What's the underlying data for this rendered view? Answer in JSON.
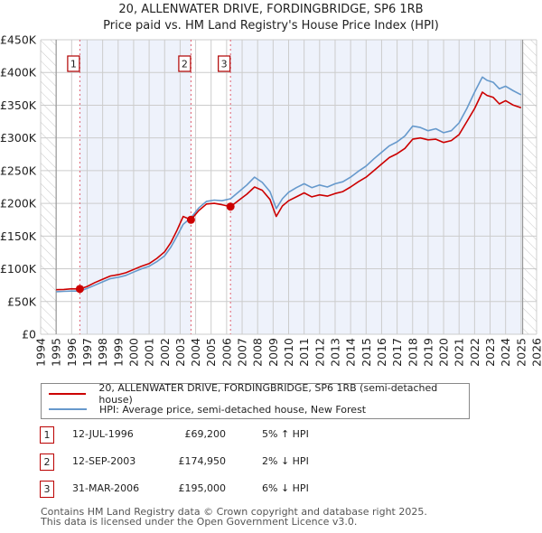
{
  "header": {
    "title": "20, ALLENWATER DRIVE, FORDINGBRIDGE, SP6 1RB",
    "subtitle": "Price paid vs. HM Land Registry's House Price Index (HPI)"
  },
  "colors": {
    "property": "#cc0000",
    "hpi": "#6699cc",
    "shade": "#eef2fb",
    "grid": "#cccccc",
    "marker_box": "#b00000",
    "vline": "#e06070"
  },
  "chart_data": {
    "type": "line",
    "title": "20, ALLENWATER DRIVE, FORDINGBRIDGE, SP6 1RB",
    "subtitle": "Price paid vs. HM Land Registry's House Price Index (HPI)",
    "xlabel": "",
    "ylabel": "",
    "xlim": [
      1994,
      2026
    ],
    "ylim": [
      0,
      450000
    ],
    "grid": true,
    "legend_position": "below",
    "x_ticks": [
      1994,
      1995,
      1996,
      1997,
      1998,
      1999,
      2000,
      2001,
      2002,
      2003,
      2004,
      2005,
      2006,
      2007,
      2008,
      2009,
      2010,
      2011,
      2012,
      2013,
      2014,
      2015,
      2016,
      2017,
      2018,
      2019,
      2020,
      2021,
      2022,
      2023,
      2024,
      2025,
      2026
    ],
    "y_ticks": [
      0,
      50000,
      100000,
      150000,
      200000,
      250000,
      300000,
      350000,
      400000,
      450000
    ],
    "y_tick_labels": [
      "£0",
      "£50K",
      "£100K",
      "£150K",
      "£200K",
      "£250K",
      "£300K",
      "£350K",
      "£400K",
      "£450K"
    ],
    "data_range": [
      1995.0,
      2025.1
    ],
    "series": [
      {
        "name": "20, ALLENWATER DRIVE, FORDINGBRIDGE, SP6 1RB (semi-detached house)",
        "color": "#cc0000",
        "x": [
          1995.0,
          1995.5,
          1996.0,
          1996.53,
          1997.0,
          1997.5,
          1998.0,
          1998.5,
          1999.0,
          1999.5,
          2000.0,
          2000.5,
          2001.0,
          2001.5,
          2002.0,
          2002.4,
          2002.8,
          2003.2,
          2003.7,
          2004.2,
          2004.7,
          2005.2,
          2005.7,
          2006.25,
          2006.8,
          2007.3,
          2007.8,
          2008.3,
          2008.8,
          2009.2,
          2009.6,
          2010.0,
          2010.5,
          2011.0,
          2011.5,
          2012.0,
          2012.5,
          2013.0,
          2013.5,
          2014.0,
          2014.5,
          2015.0,
          2015.5,
          2016.0,
          2016.5,
          2017.0,
          2017.5,
          2018.0,
          2018.5,
          2019.0,
          2019.5,
          2020.0,
          2020.5,
          2021.0,
          2021.5,
          2022.0,
          2022.5,
          2022.8,
          2023.2,
          2023.6,
          2024.0,
          2024.5,
          2025.0
        ],
        "y": [
          68000,
          68500,
          69500,
          69200,
          73000,
          79000,
          84000,
          89000,
          91000,
          94000,
          99000,
          104000,
          108000,
          116000,
          126000,
          140000,
          159000,
          180000,
          174950,
          189000,
          199000,
          200000,
          198000,
          195000,
          205000,
          214000,
          225000,
          220000,
          206000,
          180000,
          196000,
          204000,
          210000,
          216000,
          210000,
          213000,
          211000,
          215000,
          218000,
          225000,
          233000,
          240000,
          250000,
          260000,
          270000,
          276000,
          284000,
          298000,
          300000,
          297000,
          298000,
          293000,
          296000,
          305000,
          325000,
          345000,
          370000,
          365000,
          362000,
          352000,
          357000,
          350000,
          346000
        ]
      },
      {
        "name": "HPI: Average price, semi-detached house, New Forest",
        "color": "#6699cc",
        "x": [
          1995.0,
          1995.5,
          1996.0,
          1996.53,
          1997.0,
          1997.5,
          1998.0,
          1998.5,
          1999.0,
          1999.5,
          2000.0,
          2000.5,
          2001.0,
          2001.5,
          2002.0,
          2002.4,
          2002.8,
          2003.2,
          2003.7,
          2004.2,
          2004.7,
          2005.2,
          2005.7,
          2006.25,
          2006.8,
          2007.3,
          2007.8,
          2008.3,
          2008.8,
          2009.2,
          2009.6,
          2010.0,
          2010.5,
          2011.0,
          2011.5,
          2012.0,
          2012.5,
          2013.0,
          2013.5,
          2014.0,
          2014.5,
          2015.0,
          2015.5,
          2016.0,
          2016.5,
          2017.0,
          2017.5,
          2018.0,
          2018.5,
          2019.0,
          2019.5,
          2020.0,
          2020.5,
          2021.0,
          2021.5,
          2022.0,
          2022.5,
          2022.8,
          2023.2,
          2023.6,
          2024.0,
          2024.5,
          2025.0
        ],
        "y": [
          65000,
          65500,
          66000,
          66000,
          70000,
          75000,
          80000,
          85000,
          87000,
          90000,
          95000,
          100000,
          104000,
          111000,
          120000,
          133000,
          150000,
          168000,
          178000,
          193000,
          203000,
          205000,
          204000,
          207000,
          218000,
          228000,
          240000,
          232000,
          218000,
          192000,
          207000,
          217000,
          224000,
          230000,
          224000,
          228000,
          225000,
          230000,
          233000,
          240000,
          249000,
          257000,
          268000,
          278000,
          288000,
          294000,
          303000,
          318000,
          316000,
          311000,
          314000,
          308000,
          311000,
          323000,
          345000,
          370000,
          393000,
          388000,
          385000,
          375000,
          379000,
          372000,
          366000
        ]
      }
    ],
    "sales": [
      {
        "id": "1",
        "x": 1996.53,
        "y": 69200
      },
      {
        "id": "2",
        "x": 2003.7,
        "y": 174950
      },
      {
        "id": "3",
        "x": 2006.25,
        "y": 195000
      }
    ],
    "shaded_spans": [
      [
        1996.53,
        2003.7
      ],
      [
        2006.25,
        2025.1
      ]
    ],
    "hatched_spans": [
      [
        1994,
        1995.0
      ],
      [
        2025.1,
        2026
      ]
    ]
  },
  "legend": {
    "items": [
      {
        "label": "20, ALLENWATER DRIVE, FORDINGBRIDGE, SP6 1RB (semi-detached house)",
        "color": "#cc0000"
      },
      {
        "label": "HPI: Average price, semi-detached house, New Forest",
        "color": "#6699cc"
      }
    ]
  },
  "table": {
    "rows": [
      {
        "id": "1",
        "date": "12-JUL-1996",
        "price": "£69,200",
        "pct": "5% ↑ HPI"
      },
      {
        "id": "2",
        "date": "12-SEP-2003",
        "price": "£174,950",
        "pct": "2% ↓ HPI"
      },
      {
        "id": "3",
        "date": "31-MAR-2006",
        "price": "£195,000",
        "pct": "6% ↓ HPI"
      }
    ]
  },
  "footer": {
    "line1": "Contains HM Land Registry data © Crown copyright and database right 2025.",
    "line2": "This data is licensed under the Open Government Licence v3.0."
  }
}
